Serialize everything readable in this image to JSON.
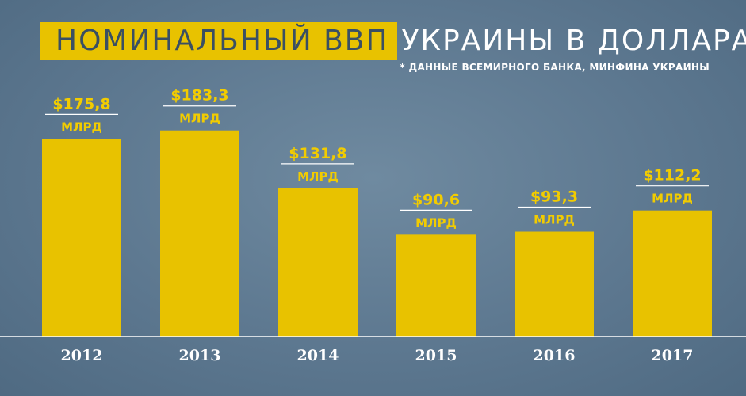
{
  "title_highlight": "НОМИНАЛЬНЫЙ ВВП",
  "title_rest": "УКРАИНЫ В ДОЛЛАРАХ",
  "subtitle": "* ДАННЫЕ ВСЕМИРНОГО БАНКА, МИНФИНА УКРАИНЫ",
  "colors": {
    "bar": "#e8c200",
    "label": "#f2cc00",
    "background": "#5d7890",
    "axis": "#ffffff",
    "title_text": "#3a4f63"
  },
  "chart_data": {
    "type": "bar",
    "categories": [
      "2012",
      "2013",
      "2014",
      "2015",
      "2016",
      "2017"
    ],
    "values": [
      175.8,
      183.3,
      131.8,
      90.6,
      93.3,
      112.2
    ],
    "value_labels": [
      "$175,8",
      "$183,3",
      "$131,8",
      "$90,6",
      "$93,3",
      "$112,2"
    ],
    "unit_label": "МЛРД",
    "ylim": [
      0,
      200
    ],
    "grid": false,
    "legend": "none"
  }
}
